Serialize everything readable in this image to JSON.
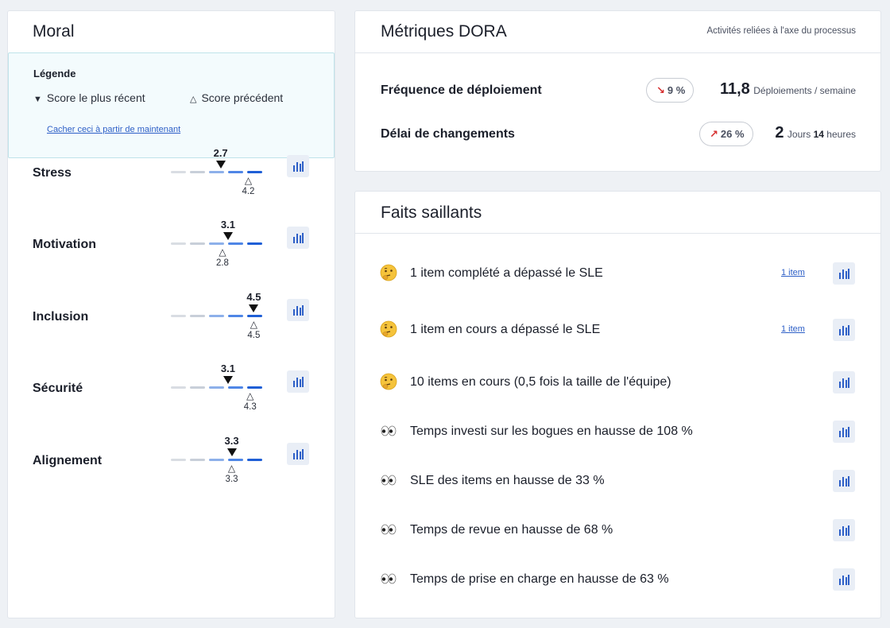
{
  "moral": {
    "title": "Moral",
    "legend": {
      "title": "Légende",
      "current_label": "Score le plus récent",
      "previous_label": "Score précédent",
      "hide_link": "Cacher ceci à partir de maintenant"
    },
    "scale": {
      "min": 0,
      "max": 5
    },
    "rows": [
      {
        "label": "Stress",
        "current": "2.7",
        "previous": "4.2"
      },
      {
        "label": "Motivation",
        "current": "3.1",
        "previous": "2.8"
      },
      {
        "label": "Inclusion",
        "current": "4.5",
        "previous": "4.5"
      },
      {
        "label": "Sécurité",
        "current": "3.1",
        "previous": "4.3"
      },
      {
        "label": "Alignement",
        "current": "3.3",
        "previous": "3.3"
      }
    ],
    "segment_colors": [
      "#d9dde3",
      "#c8cfd9",
      "#8db0ea",
      "#4f86e6",
      "#1f5fd6"
    ]
  },
  "dora": {
    "title": "Métriques DORA",
    "subtitle": "Activités reliées à l'axe du processus",
    "metrics": [
      {
        "label": "Fréquence de déploiement",
        "trend_icon": "arrow-down-right-icon",
        "trend_arrow": "↘",
        "trend_text": "9 %",
        "value": "11,8",
        "unit_parts": [
          "Déploiements / semaine"
        ]
      },
      {
        "label": "Délai de changements",
        "trend_icon": "arrow-up-right-icon",
        "trend_arrow": "↗",
        "trend_text": "26 %",
        "value": "2",
        "unit_a": "Jours",
        "unit_b": "14",
        "unit_c": "heures"
      }
    ],
    "accent_red": "#d62e2e"
  },
  "faits": {
    "title": "Faits saillants",
    "items": [
      {
        "icon": "thinking-face-icon",
        "text": "1 item complété a dépassé le SLE",
        "link": "1 item"
      },
      {
        "icon": "thinking-face-icon",
        "text": "1 item en cours a dépassé le SLE",
        "link": "1 item"
      },
      {
        "icon": "thinking-face-icon",
        "text": "10 items en cours (0,5 fois la taille de l'équipe)",
        "link": ""
      },
      {
        "icon": "eyes-icon",
        "text": "Temps investi sur les bogues en hausse de 108 %",
        "link": ""
      },
      {
        "icon": "eyes-icon",
        "text": "SLE des items en hausse de 33 %",
        "link": ""
      },
      {
        "icon": "eyes-icon",
        "text": "Temps de revue en hausse de 68 %",
        "link": ""
      },
      {
        "icon": "eyes-icon",
        "text": "Temps de prise en charge en hausse de 63 %",
        "link": ""
      }
    ]
  },
  "colors": {
    "chart_button_bar": "#2d5fc7",
    "link": "#2d5fc7"
  }
}
